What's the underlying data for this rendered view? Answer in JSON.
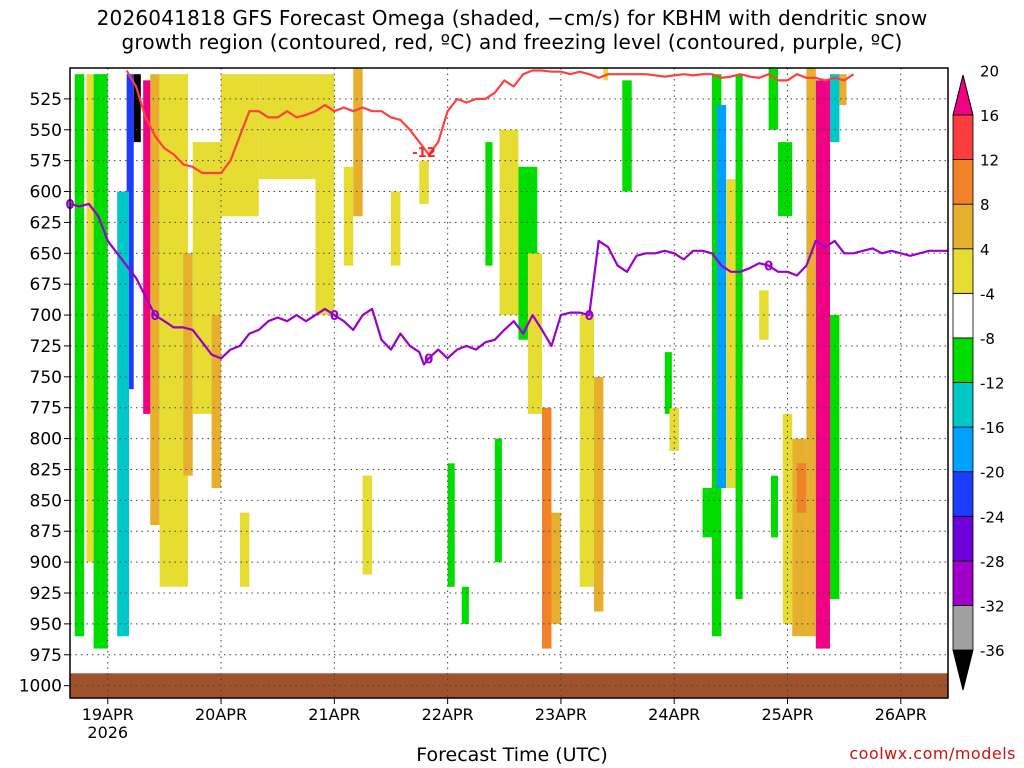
{
  "title": {
    "line1": "2026041818 GFS Forecast Omega (shaded, −cm/s) for KBHM with dendritic snow",
    "line2": "growth region (contoured, red, ºC) and freezing level (contoured, purple, ºC)"
  },
  "credit": "coolwx.com/models",
  "chart_data": {
    "type": "heatmap",
    "title": "2026041818 GFS Forecast Omega (shaded, −cm/s) for KBHM with dendritic snow growth region (contoured, red, ºC) and freezing level (contoured, purple, ºC)",
    "xlabel": "Forecast Time (UTC)",
    "ylabel": "",
    "x_ticks": [
      "19APR",
      "20APR",
      "21APR",
      "22APR",
      "23APR",
      "24APR",
      "25APR",
      "26APR"
    ],
    "x_year_label": "2026",
    "x_range_hours": [
      0,
      186
    ],
    "y_ticks": [
      525,
      550,
      575,
      600,
      625,
      650,
      675,
      700,
      725,
      750,
      775,
      800,
      825,
      850,
      875,
      900,
      925,
      950,
      975,
      1000
    ],
    "y_range_hPa": [
      1010,
      500
    ],
    "grid": true,
    "terrain_below_hPa": 990,
    "colorbar": {
      "levels": [
        -36,
        -32,
        -28,
        -24,
        -20,
        -16,
        -12,
        -8,
        -4,
        4,
        8,
        12,
        16,
        20
      ],
      "colors": [
        "#000000",
        "#a0a0a0",
        "#a000c8",
        "#6e00dc",
        "#1e3cff",
        "#00a0ff",
        "#00c8c8",
        "#00dc00",
        "#ffffff",
        "#e6dc32",
        "#e6af2d",
        "#f08228",
        "#fa3c3c",
        "#f00082"
      ]
    },
    "series": [
      {
        "name": "freezing level",
        "color": "#9900cc",
        "label": "0",
        "x": [
          0,
          2,
          4,
          6,
          8,
          10,
          12,
          14,
          16,
          18,
          20,
          22,
          24,
          26,
          28,
          30,
          32,
          34,
          36,
          38,
          40,
          42,
          44,
          46,
          48,
          50,
          52,
          54,
          56,
          58,
          60,
          62,
          64,
          66,
          68,
          70,
          72,
          74,
          75,
          76,
          78,
          80,
          82,
          84,
          86,
          88,
          90,
          92,
          94,
          96,
          98,
          100,
          102,
          104,
          106,
          108,
          110,
          112,
          114,
          116,
          118,
          120,
          122,
          124,
          126,
          128,
          130,
          132,
          134,
          136,
          138,
          140,
          142,
          144,
          146,
          148,
          150,
          152,
          154,
          156,
          158,
          160,
          162,
          164,
          166,
          168,
          170,
          172,
          174,
          176,
          178,
          180,
          182,
          184,
          186
        ],
        "y": [
          610,
          612,
          610,
          620,
          640,
          650,
          660,
          670,
          685,
          700,
          705,
          710,
          710,
          712,
          722,
          732,
          735,
          728,
          725,
          715,
          712,
          705,
          702,
          705,
          700,
          705,
          700,
          695,
          700,
          705,
          712,
          700,
          695,
          720,
          728,
          715,
          725,
          730,
          740,
          735,
          728,
          735,
          728,
          725,
          728,
          722,
          720,
          712,
          705,
          715,
          700,
          712,
          725,
          700,
          698,
          698,
          700,
          640,
          645,
          660,
          665,
          652,
          650,
          650,
          648,
          650,
          655,
          648,
          648,
          650,
          660,
          665,
          665,
          662,
          658,
          660,
          665,
          665,
          668,
          660,
          640,
          645,
          640,
          650,
          650,
          648,
          646,
          650,
          648,
          650,
          652,
          650,
          648,
          648,
          648
        ]
      },
      {
        "name": "dendritic snow growth region",
        "color": "#ff4040",
        "label": "-12",
        "x": [
          12,
          14,
          16,
          18,
          20,
          22,
          24,
          26,
          28,
          30,
          32,
          34,
          36,
          38,
          40,
          42,
          44,
          46,
          48,
          50,
          52,
          54,
          56,
          58,
          60,
          62,
          64,
          66,
          68,
          70,
          72,
          74,
          76,
          78,
          80,
          82,
          84,
          86,
          88,
          90,
          92,
          94,
          96,
          98,
          100,
          102,
          104,
          106,
          108,
          110,
          112,
          114,
          116,
          118,
          120,
          122,
          124,
          126,
          128,
          130,
          132,
          134,
          136,
          138,
          140,
          142,
          144,
          146,
          148,
          150,
          152,
          154,
          156,
          158,
          160,
          162,
          164,
          166
        ],
        "y": [
          502,
          515,
          540,
          555,
          565,
          570,
          578,
          580,
          585,
          585,
          585,
          575,
          555,
          535,
          535,
          540,
          540,
          535,
          540,
          538,
          535,
          530,
          535,
          532,
          535,
          532,
          535,
          535,
          540,
          542,
          550,
          560,
          570,
          560,
          535,
          525,
          528,
          525,
          525,
          520,
          510,
          515,
          505,
          502,
          502,
          503,
          503,
          505,
          503,
          505,
          508,
          505,
          505,
          505,
          505,
          505,
          506,
          507,
          506,
          505,
          506,
          505,
          505,
          508,
          507,
          505,
          507,
          508,
          505,
          510,
          510,
          505,
          508,
          508,
          510,
          508,
          510,
          505
        ]
      }
    ],
    "omega_regions": [
      {
        "t0": 15.5,
        "t1": 17.5,
        "p0": 510,
        "p1": 780,
        "value": 20
      },
      {
        "t0": 17,
        "t1": 19,
        "p0": 505,
        "p1": 870,
        "value": 10
      },
      {
        "t0": 12,
        "t1": 13.5,
        "p0": 505,
        "p1": 760,
        "value": -20
      },
      {
        "t0": 13.5,
        "t1": 15,
        "p0": 505,
        "p1": 560,
        "value": -36
      },
      {
        "t0": 1,
        "t1": 3,
        "p0": 505,
        "p1": 960,
        "value": -8
      },
      {
        "t0": 3.5,
        "t1": 5,
        "p0": 505,
        "p1": 900,
        "value": 4
      },
      {
        "t0": 5,
        "t1": 8,
        "p0": 505,
        "p1": 970,
        "value": -8
      },
      {
        "t0": 10,
        "t1": 12.5,
        "p0": 600,
        "p1": 960,
        "value": -12
      },
      {
        "t0": 19,
        "t1": 25,
        "p0": 505,
        "p1": 920,
        "value": 4
      },
      {
        "t0": 24,
        "t1": 26,
        "p0": 650,
        "p1": 830,
        "value": 8
      },
      {
        "t0": 26,
        "t1": 32,
        "p0": 560,
        "p1": 780,
        "value": 4
      },
      {
        "t0": 30,
        "t1": 32,
        "p0": 700,
        "p1": 840,
        "value": 8
      },
      {
        "t0": 32,
        "t1": 40,
        "p0": 505,
        "p1": 620,
        "value": 4
      },
      {
        "t0": 36,
        "t1": 38,
        "p0": 860,
        "p1": 920,
        "value": 4
      },
      {
        "t0": 40,
        "t1": 52,
        "p0": 505,
        "p1": 590,
        "value": 4
      },
      {
        "t0": 52,
        "t1": 56,
        "p0": 505,
        "p1": 700,
        "value": 4
      },
      {
        "t0": 60,
        "t1": 62,
        "p0": 500,
        "p1": 620,
        "value": 8
      },
      {
        "t0": 58,
        "t1": 60,
        "p0": 580,
        "p1": 660,
        "value": 4
      },
      {
        "t0": 62,
        "t1": 64,
        "p0": 830,
        "p1": 910,
        "value": 4
      },
      {
        "t0": 68,
        "t1": 70,
        "p0": 600,
        "p1": 660,
        "value": 4
      },
      {
        "t0": 74,
        "t1": 76,
        "p0": 575,
        "p1": 610,
        "value": 4
      },
      {
        "t0": 80,
        "t1": 81.5,
        "p0": 820,
        "p1": 920,
        "value": -8
      },
      {
        "t0": 83,
        "t1": 84.5,
        "p0": 920,
        "p1": 950,
        "value": -8
      },
      {
        "t0": 88,
        "t1": 89.5,
        "p0": 560,
        "p1": 660,
        "value": -8
      },
      {
        "t0": 90,
        "t1": 91.5,
        "p0": 800,
        "p1": 900,
        "value": -8
      },
      {
        "t0": 91,
        "t1": 95,
        "p0": 550,
        "p1": 700,
        "value": 4
      },
      {
        "t0": 95,
        "t1": 99,
        "p0": 580,
        "p1": 720,
        "value": -8
      },
      {
        "t0": 97,
        "t1": 100,
        "p0": 650,
        "p1": 780,
        "value": 4
      },
      {
        "t0": 100,
        "t1": 102,
        "p0": 775,
        "p1": 970,
        "value": 12
      },
      {
        "t0": 102,
        "t1": 104,
        "p0": 860,
        "p1": 950,
        "value": 8
      },
      {
        "t0": 108,
        "t1": 111,
        "p0": 700,
        "p1": 920,
        "value": 4
      },
      {
        "t0": 111,
        "t1": 113,
        "p0": 750,
        "p1": 940,
        "value": 8
      },
      {
        "t0": 113,
        "t1": 114,
        "p0": 500,
        "p1": 510,
        "value": 4
      },
      {
        "t0": 117,
        "t1": 119,
        "p0": 510,
        "p1": 600,
        "value": -8
      },
      {
        "t0": 126,
        "t1": 127.5,
        "p0": 730,
        "p1": 780,
        "value": -8
      },
      {
        "t0": 127,
        "t1": 129,
        "p0": 775,
        "p1": 810,
        "value": 4
      },
      {
        "t0": 134,
        "t1": 136,
        "p0": 840,
        "p1": 880,
        "value": -8
      },
      {
        "t0": 136,
        "t1": 138,
        "p0": 505,
        "p1": 960,
        "value": -8
      },
      {
        "t0": 137,
        "t1": 139,
        "p0": 530,
        "p1": 840,
        "value": -16
      },
      {
        "t0": 139,
        "t1": 141,
        "p0": 590,
        "p1": 840,
        "value": 4
      },
      {
        "t0": 141,
        "t1": 142.5,
        "p0": 505,
        "p1": 930,
        "value": -8
      },
      {
        "t0": 146,
        "t1": 148,
        "p0": 680,
        "p1": 720,
        "value": 4
      },
      {
        "t0": 148,
        "t1": 150,
        "p0": 500,
        "p1": 550,
        "value": -8
      },
      {
        "t0": 148.5,
        "t1": 150,
        "p0": 830,
        "p1": 880,
        "value": -8
      },
      {
        "t0": 150,
        "t1": 153,
        "p0": 560,
        "p1": 620,
        "value": -8
      },
      {
        "t0": 151,
        "t1": 153,
        "p0": 780,
        "p1": 950,
        "value": 4
      },
      {
        "t0": 153,
        "t1": 156,
        "p0": 800,
        "p1": 960,
        "value": 8
      },
      {
        "t0": 154,
        "t1": 156,
        "p0": 820,
        "p1": 860,
        "value": 12
      },
      {
        "t0": 156,
        "t1": 158,
        "p0": 500,
        "p1": 960,
        "value": 8
      },
      {
        "t0": 158,
        "t1": 161,
        "p0": 510,
        "p1": 970,
        "value": 20
      },
      {
        "t0": 161,
        "t1": 163,
        "p0": 700,
        "p1": 930,
        "value": -8
      },
      {
        "t0": 161,
        "t1": 163,
        "p0": 505,
        "p1": 560,
        "value": -12
      },
      {
        "t0": 163,
        "t1": 164.5,
        "p0": 505,
        "p1": 530,
        "value": 8
      }
    ]
  }
}
